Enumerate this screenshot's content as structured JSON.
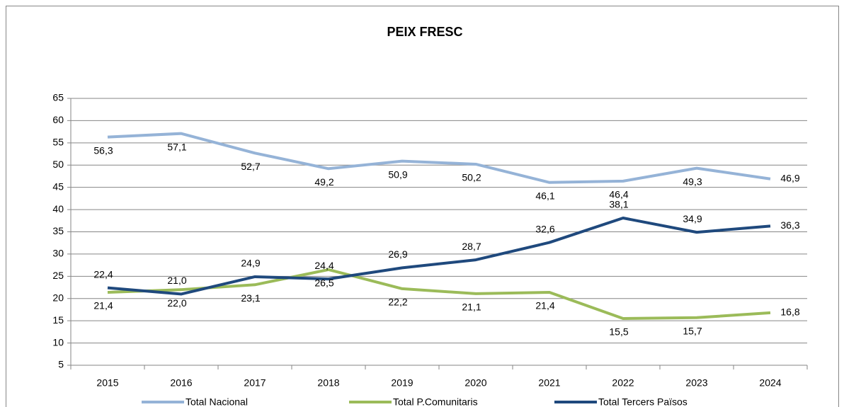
{
  "chart_data": {
    "type": "line",
    "title": "PEIX FRESC",
    "categories": [
      "2015",
      "2016",
      "2017",
      "2018",
      "2019",
      "2020",
      "2021",
      "2022",
      "2023",
      "2024"
    ],
    "ylim": [
      5,
      65
    ],
    "yticks": [
      5,
      10,
      15,
      20,
      25,
      30,
      35,
      40,
      45,
      50,
      55,
      60,
      65
    ],
    "grid": true,
    "legend": "bottom",
    "series": [
      {
        "name": "Total Nacional",
        "color": "#95b3d7",
        "values": [
          56.3,
          57.1,
          52.7,
          49.2,
          50.9,
          50.2,
          46.1,
          46.4,
          49.3,
          46.9
        ],
        "value_labels": [
          "56,3",
          "57,1",
          "52,7",
          "49,2",
          "50,9",
          "50,2",
          "46,1",
          "46,4",
          "49,3",
          "46,9"
        ]
      },
      {
        "name": "Total P.Comunitaris",
        "color": "#9bbb59",
        "values": [
          21.4,
          22.0,
          23.1,
          26.5,
          22.2,
          21.1,
          21.4,
          15.5,
          15.7,
          16.8
        ],
        "value_labels": [
          "21,4",
          "22,0",
          "23,1",
          "26,5",
          "22,2",
          "21,1",
          "21,4",
          "15,5",
          "15,7",
          "16,8"
        ]
      },
      {
        "name": "Total Tercers Països",
        "color": "#1f497d",
        "values": [
          22.4,
          21.0,
          24.9,
          24.4,
          26.9,
          28.7,
          32.6,
          38.1,
          34.9,
          36.3
        ],
        "value_labels": [
          "22,4",
          "21,0",
          "24,9",
          "24,4",
          "26,9",
          "28,7",
          "32,6",
          "38,1",
          "34,9",
          "36,3"
        ]
      }
    ]
  }
}
